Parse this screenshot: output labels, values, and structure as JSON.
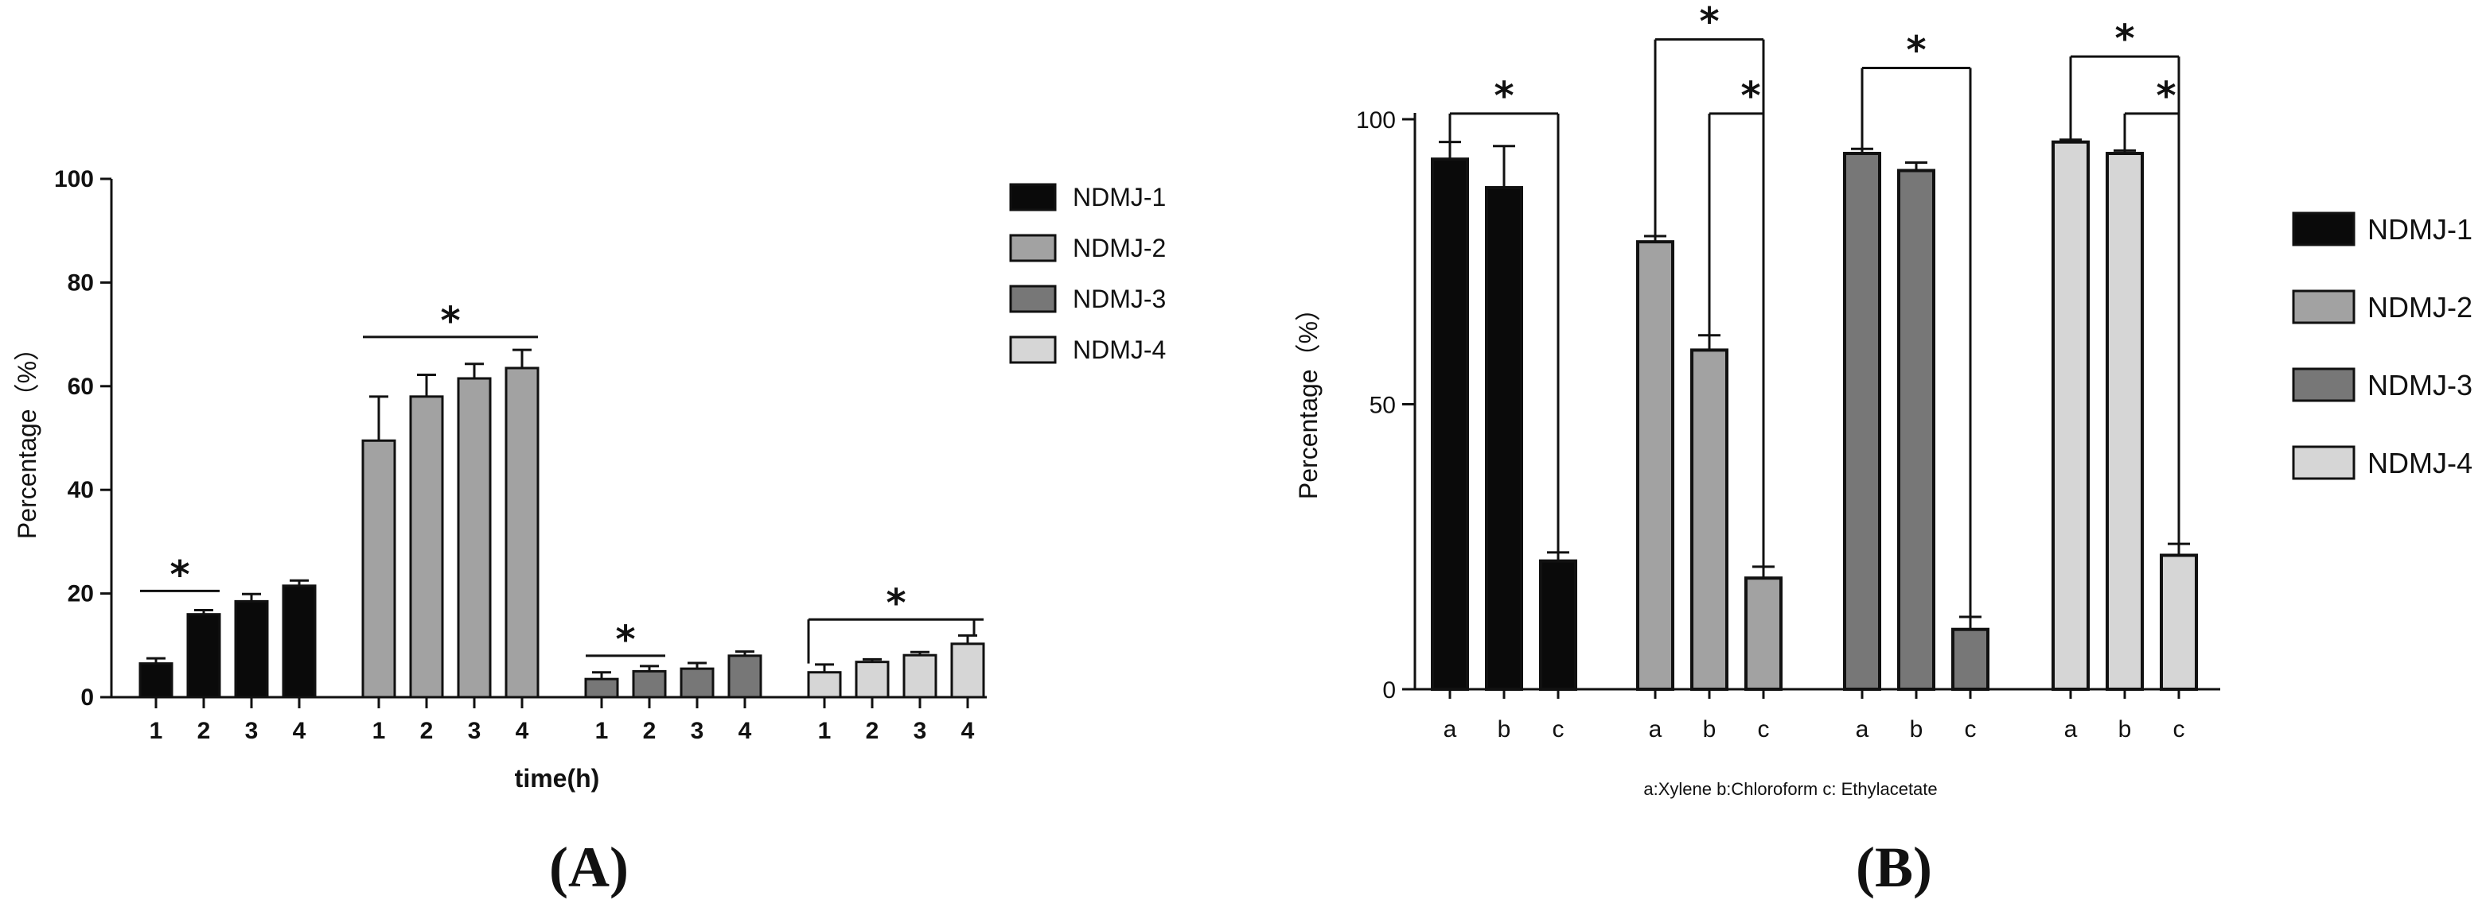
{
  "panel_labels": {
    "a": "(A)",
    "b": "(B)"
  },
  "colors": {
    "NDMJ-1": "#0a0a0a",
    "NDMJ-2": "#a2a2a2",
    "NDMJ-3": "#777777",
    "NDMJ-4": "#d6d6d6"
  },
  "chart_data": [
    {
      "type": "bar",
      "panel": "(A)",
      "xlabel": "time(h)",
      "ylabel": "Percentage（%）",
      "ylim": [
        0,
        100
      ],
      "yticks": [
        "0",
        "20",
        "40",
        "60",
        "80",
        "100"
      ],
      "groups": [
        {
          "series": "NDMJ-1",
          "categories": [
            "1",
            "2",
            "3",
            "4"
          ],
          "values": [
            6.5,
            16,
            18.5,
            21.5
          ],
          "errors": [
            1.0,
            0.8,
            1.4,
            1.0
          ]
        },
        {
          "series": "NDMJ-2",
          "categories": [
            "1",
            "2",
            "3",
            "4"
          ],
          "values": [
            49.5,
            58,
            61.5,
            63.5
          ],
          "errors": [
            8.5,
            4.2,
            2.8,
            3.5
          ]
        },
        {
          "series": "NDMJ-3",
          "categories": [
            "1",
            "2",
            "3",
            "4"
          ],
          "values": [
            3.5,
            5,
            5.5,
            8
          ],
          "errors": [
            1.3,
            1.0,
            1.1,
            0.8
          ]
        },
        {
          "series": "NDMJ-4",
          "categories": [
            "1",
            "2",
            "3",
            "4"
          ],
          "values": [
            4.8,
            6.8,
            8.1,
            10.3
          ],
          "errors": [
            1.5,
            0.5,
            0.6,
            1.6
          ]
        }
      ],
      "significance": [
        {
          "group": 0,
          "from": 0,
          "to": 1,
          "y": 20.5,
          "label": "*",
          "bracket": false
        },
        {
          "group": 1,
          "from": 0,
          "to": 3,
          "y": 69.5,
          "label": "*",
          "bracket": false
        },
        {
          "group": 2,
          "from": 0,
          "to": 1,
          "y": 8,
          "label": "*",
          "bracket": false
        },
        {
          "group": 3,
          "from": 0,
          "to": 3,
          "y": 15,
          "label": "*",
          "bracket": true,
          "left_end": 6.5,
          "right_end": 12
        }
      ],
      "legend": [
        "NDMJ-1",
        "NDMJ-2",
        "NDMJ-3",
        "NDMJ-4"
      ],
      "legend_position": "right"
    },
    {
      "type": "bar",
      "panel": "(B)",
      "ylabel": "Percentage（%）",
      "ylim": [
        0,
        100
      ],
      "yticks": [
        "0",
        "50",
        "100"
      ],
      "note": "a:Xylene   b:Chloroform   c: Ethylacetate",
      "groups": [
        {
          "series": "NDMJ-1",
          "categories": [
            "a",
            "b",
            "c"
          ],
          "values": [
            93,
            88,
            22.5
          ],
          "errors": [
            3.0,
            7.3,
            1.5
          ]
        },
        {
          "series": "NDMJ-2",
          "categories": [
            "a",
            "b",
            "c"
          ],
          "values": [
            78.5,
            59.5,
            19.5
          ],
          "errors": [
            1.0,
            2.6,
            2.0
          ]
        },
        {
          "series": "NDMJ-3",
          "categories": [
            "a",
            "b",
            "c"
          ],
          "values": [
            94,
            91,
            10.5
          ],
          "errors": [
            0.8,
            1.4,
            2.2
          ]
        },
        {
          "series": "NDMJ-4",
          "categories": [
            "a",
            "b",
            "c"
          ],
          "values": [
            96,
            94,
            23.5
          ],
          "errors": [
            0.4,
            0.5,
            2.0
          ]
        }
      ],
      "significance": [
        {
          "group": 0,
          "from": 0,
          "to": 2,
          "y": 101,
          "label": "*"
        },
        {
          "group": 1,
          "from": 0,
          "to": 2,
          "y": 114,
          "label": "*"
        },
        {
          "group": 1,
          "from": 1,
          "to": 2,
          "y": 101,
          "label": "*"
        },
        {
          "group": 2,
          "from": 0,
          "to": 2,
          "y": 109,
          "label": "*"
        },
        {
          "group": 3,
          "from": 0,
          "to": 2,
          "y": 111,
          "label": "*"
        },
        {
          "group": 3,
          "from": 1,
          "to": 2,
          "y": 101,
          "label": "*"
        }
      ],
      "legend": [
        "NDMJ-1",
        "NDMJ-2",
        "NDMJ-3",
        "NDMJ-4"
      ],
      "legend_position": "right"
    }
  ]
}
